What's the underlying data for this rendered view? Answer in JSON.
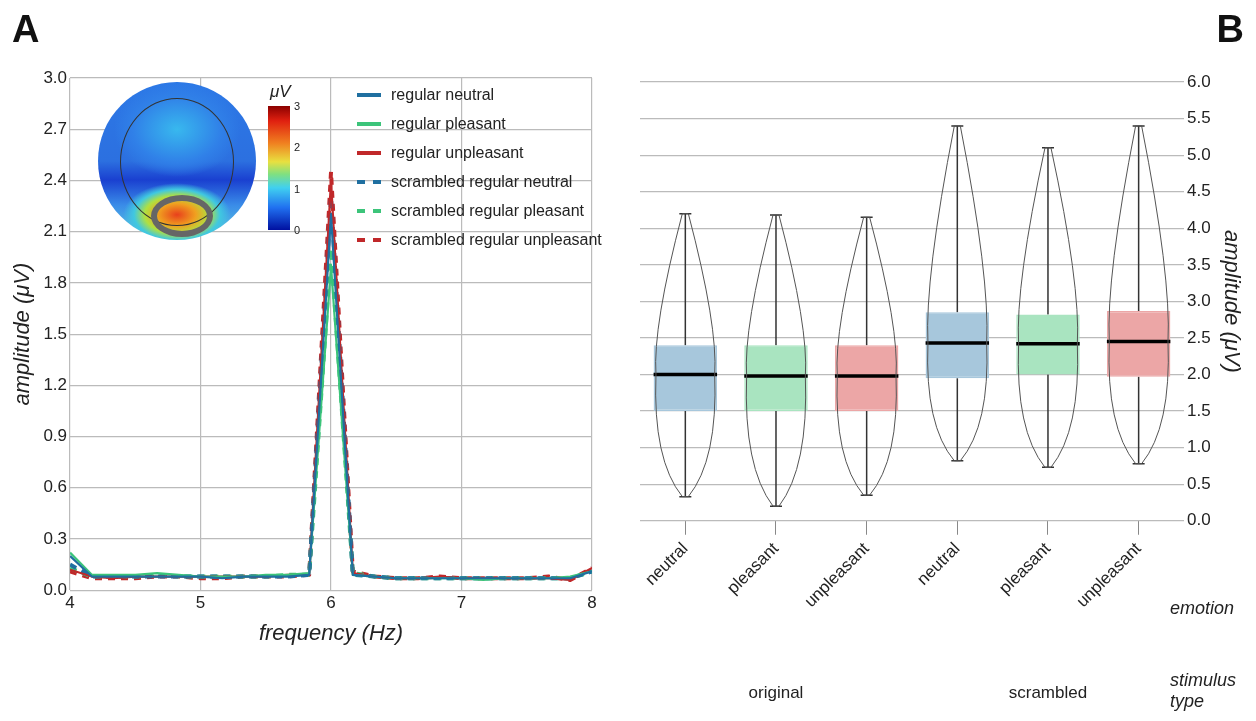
{
  "chart_data": [
    {
      "type": "line",
      "title": "A",
      "xlabel": "frequency (Hz)",
      "ylabel": "amplitude (μV)",
      "x": [
        4,
        4.167,
        4.333,
        4.5,
        4.667,
        4.833,
        5,
        5.167,
        5.333,
        5.5,
        5.667,
        5.833,
        6,
        6.167,
        6.333,
        6.5,
        6.667,
        6.833,
        7,
        7.167,
        7.333,
        7.5,
        7.667,
        7.833,
        8
      ],
      "series": [
        {
          "name": "regular neutral",
          "color": "#1f6fa0",
          "line_style": "solid",
          "values": [
            0.2,
            0.08,
            0.08,
            0.08,
            0.08,
            0.08,
            0.08,
            0.07,
            0.08,
            0.08,
            0.08,
            0.09,
            2.2,
            0.09,
            0.08,
            0.07,
            0.07,
            0.07,
            0.07,
            0.07,
            0.07,
            0.07,
            0.07,
            0.07,
            0.11
          ]
        },
        {
          "name": "regular pleasant",
          "color": "#3cc47a",
          "line_style": "solid",
          "values": [
            0.22,
            0.09,
            0.09,
            0.09,
            0.1,
            0.09,
            0.08,
            0.08,
            0.08,
            0.09,
            0.09,
            0.1,
            1.9,
            0.09,
            0.08,
            0.07,
            0.07,
            0.07,
            0.07,
            0.06,
            0.07,
            0.07,
            0.07,
            0.08,
            0.11
          ]
        },
        {
          "name": "regular unpleasant",
          "color": "#c0282a",
          "line_style": "solid",
          "values": [
            0.12,
            0.08,
            0.07,
            0.08,
            0.08,
            0.08,
            0.08,
            0.08,
            0.08,
            0.08,
            0.09,
            0.09,
            2.4,
            0.1,
            0.08,
            0.07,
            0.07,
            0.08,
            0.07,
            0.07,
            0.07,
            0.07,
            0.07,
            0.06,
            0.13
          ]
        },
        {
          "name": "scrambled regular neutral",
          "color": "#1f6fa0",
          "line_style": "dashed",
          "values": [
            0.15,
            0.08,
            0.08,
            0.08,
            0.08,
            0.08,
            0.08,
            0.08,
            0.08,
            0.08,
            0.08,
            0.09,
            2.3,
            0.09,
            0.08,
            0.07,
            0.07,
            0.07,
            0.07,
            0.07,
            0.07,
            0.07,
            0.07,
            0.07,
            0.11
          ]
        },
        {
          "name": "scrambled regular pleasant",
          "color": "#3cc47a",
          "line_style": "dashed",
          "values": [
            0.13,
            0.08,
            0.08,
            0.08,
            0.09,
            0.08,
            0.08,
            0.08,
            0.08,
            0.08,
            0.09,
            0.09,
            2.0,
            0.1,
            0.08,
            0.07,
            0.07,
            0.07,
            0.07,
            0.07,
            0.07,
            0.07,
            0.07,
            0.07,
            0.11
          ]
        },
        {
          "name": "scrambled regular unpleasant",
          "color": "#c0282a",
          "line_style": "dashed",
          "values": [
            0.11,
            0.07,
            0.07,
            0.07,
            0.08,
            0.08,
            0.07,
            0.07,
            0.08,
            0.08,
            0.08,
            0.09,
            2.45,
            0.11,
            0.08,
            0.07,
            0.07,
            0.08,
            0.07,
            0.07,
            0.07,
            0.07,
            0.08,
            0.06,
            0.13
          ]
        }
      ],
      "xlim": [
        4,
        8
      ],
      "xticks": [
        4,
        5,
        6,
        7,
        8
      ],
      "ylim": [
        0,
        3
      ],
      "yticks": [
        {
          "value": 0,
          "label": "0.0"
        },
        0.3,
        0.6,
        0.9,
        1.2,
        1.5,
        1.8,
        2.1,
        2.4,
        2.7,
        {
          "value": 3,
          "label": "3.0"
        }
      ],
      "grid": true,
      "legend": "top right",
      "marker": "none",
      "annotations": [
        "μV",
        "3",
        "2",
        "1",
        "0"
      ]
    },
    {
      "type": "box",
      "title": "B",
      "ylabel": "amplitude (μV)",
      "categories": [
        "neutral",
        "pleasant",
        "unpleasant",
        "neutral",
        "pleasant",
        "unpleasant"
      ],
      "colors": [
        "#a7c7dc",
        "#a9e4c0",
        "#eca6a6",
        "#a7c7dc",
        "#a9e4c0",
        "#eca6a6"
      ],
      "boxes": [
        {
          "low": 0.33,
          "q1": 1.5,
          "median": 2.0,
          "q3": 2.4,
          "high": 4.2
        },
        {
          "low": 0.2,
          "q1": 1.5,
          "median": 1.98,
          "q3": 2.4,
          "high": 4.18
        },
        {
          "low": 0.35,
          "q1": 1.5,
          "median": 1.98,
          "q3": 2.4,
          "high": 4.15
        },
        {
          "low": 0.82,
          "q1": 1.95,
          "median": 2.43,
          "q3": 2.85,
          "high": 5.4
        },
        {
          "low": 0.73,
          "q1": 2.0,
          "median": 2.42,
          "q3": 2.82,
          "high": 5.1
        },
        {
          "low": 0.78,
          "q1": 1.97,
          "median": 2.45,
          "q3": 2.87,
          "high": 5.4
        }
      ],
      "ylim": [
        0,
        6
      ],
      "yticks": [
        {
          "value": 0,
          "label": "0.0"
        },
        0.5,
        {
          "value": 1,
          "label": "1.0"
        },
        1.5,
        {
          "value": 2,
          "label": "2.0"
        },
        2.5,
        {
          "value": 3,
          "label": "3.0"
        },
        3.5,
        {
          "value": 4,
          "label": "4.0"
        },
        4.5,
        {
          "value": 5,
          "label": "5.0"
        },
        5.5,
        {
          "value": 6,
          "label": "6.0"
        }
      ],
      "grid": "y",
      "legend": false,
      "annotations": [
        "original",
        "scrambled",
        "emotion",
        "stimulus type"
      ]
    }
  ]
}
